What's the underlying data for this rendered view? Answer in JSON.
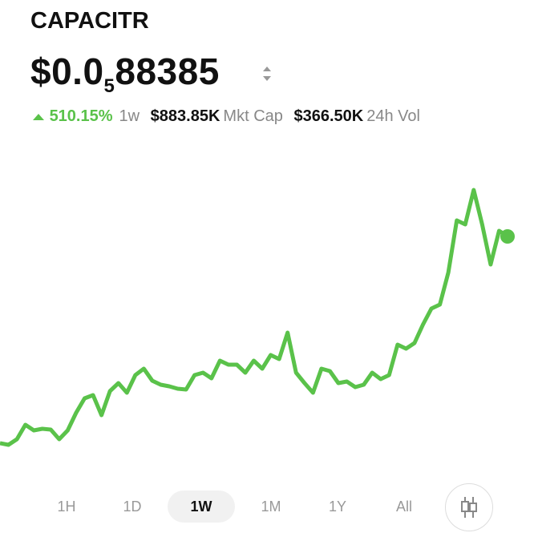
{
  "header": {
    "title": "CAPACITR",
    "price": {
      "lead": "$0.0",
      "zeros": "5",
      "digits": "88385"
    }
  },
  "stats": {
    "change": "510.15%",
    "period": "1w",
    "mkt_cap_value": "$883.85K",
    "mkt_cap_label": "Mkt Cap",
    "vol_value": "$366.50K",
    "vol_label": "24h Vol"
  },
  "chart_data": {
    "type": "line",
    "color": "#5ac24a",
    "values": [
      27,
      25,
      32,
      50,
      43,
      45,
      44,
      32,
      43,
      65,
      83,
      87,
      62,
      92,
      102,
      90,
      112,
      120,
      105,
      100,
      98,
      95,
      94,
      112,
      115,
      108,
      130,
      125,
      125,
      115,
      130,
      120,
      137,
      132,
      165,
      115,
      102,
      90,
      120,
      117,
      102,
      104,
      97,
      100,
      115,
      107,
      112,
      150,
      145,
      152,
      175,
      195,
      200,
      240,
      305,
      300,
      343,
      300,
      250,
      292,
      285
    ]
  },
  "tabs": [
    "1H",
    "1D",
    "1W",
    "1M",
    "1Y",
    "All"
  ],
  "selected_tab": "1W"
}
